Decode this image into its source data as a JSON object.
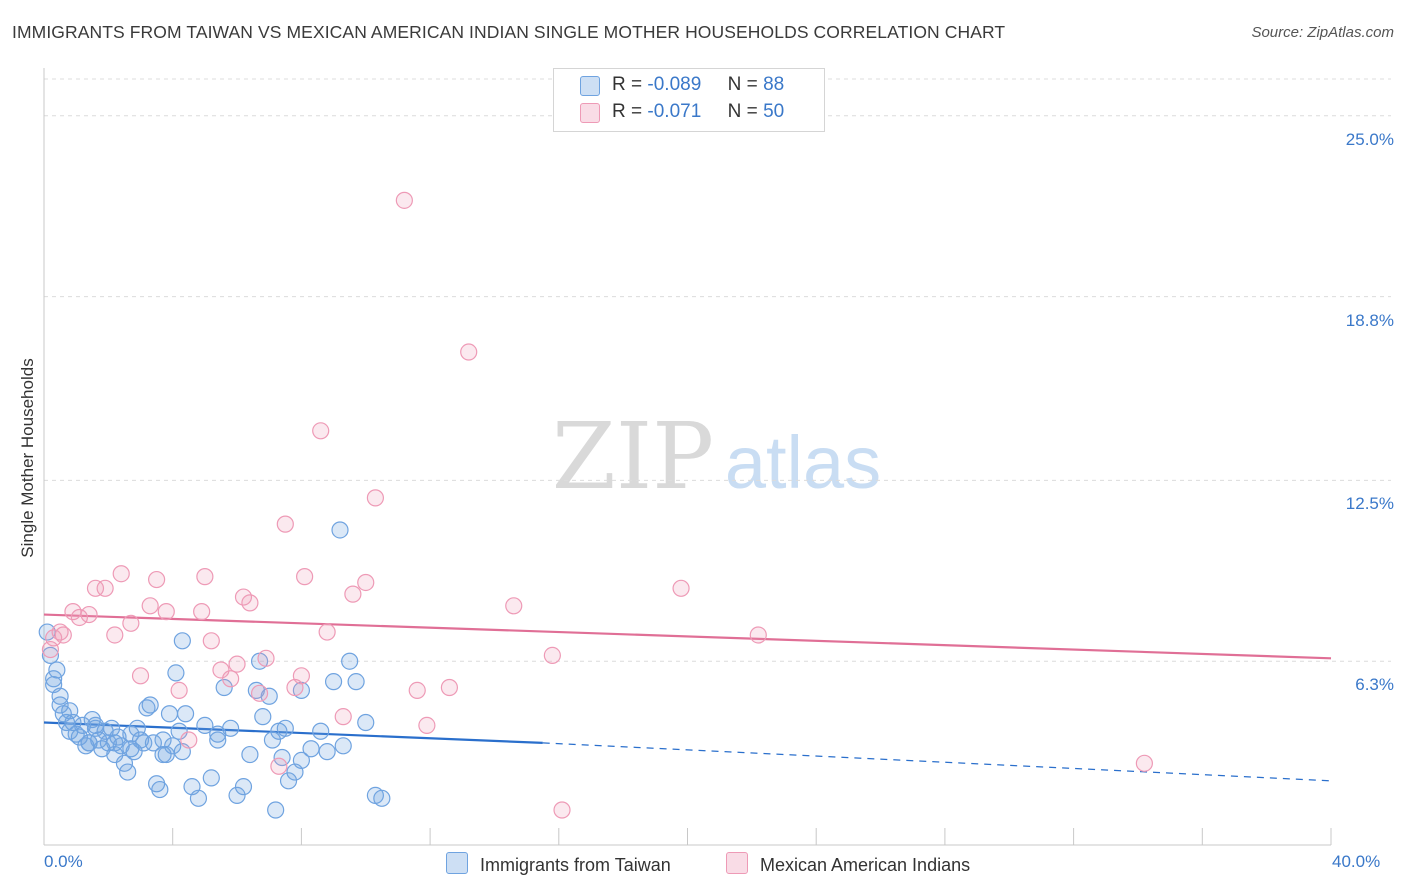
{
  "chart_data": {
    "type": "scatter",
    "title": "IMMIGRANTS FROM TAIWAN VS MEXICAN AMERICAN INDIAN SINGLE MOTHER HOUSEHOLDS CORRELATION CHART",
    "source": "Source: ZipAtlas.com",
    "ylabel": "Single Mother Households",
    "xlim": [
      0,
      40
    ],
    "ylim": [
      0,
      26.5
    ],
    "x_tick_labels": [
      "0.0%",
      "40.0%"
    ],
    "y_ticks": [
      {
        "value": 25.0,
        "label": "25.0%"
      },
      {
        "value": 18.8,
        "label": "18.8%"
      },
      {
        "value": 12.5,
        "label": "12.5%"
      },
      {
        "value": 6.3,
        "label": "6.3%"
      }
    ],
    "watermark": {
      "part1": "ZIP",
      "part2": "atlas"
    },
    "legend": {
      "rows": [
        {
          "r_label": "R =",
          "r_value": "-0.089",
          "n_label": "N =",
          "n_value": "88"
        },
        {
          "r_label": "R =",
          "r_value": "-0.071",
          "n_label": "N =",
          "n_value": "50"
        }
      ]
    },
    "series": [
      {
        "name": "Immigrants from Taiwan",
        "color": "#6fa3e0",
        "fill": "rgba(111,163,224,0.25)",
        "trend_color": "#2a6fcc",
        "trend": {
          "x0": 0,
          "y0": 4.2,
          "x1": 15.5,
          "y1": 3.5,
          "dash_to_x": 40,
          "dash_to_y": 2.2
        },
        "points": [
          [
            0.1,
            7.3
          ],
          [
            0.2,
            6.5
          ],
          [
            0.3,
            5.7
          ],
          [
            0.4,
            6.0
          ],
          [
            0.5,
            4.8
          ],
          [
            0.5,
            5.1
          ],
          [
            0.6,
            4.5
          ],
          [
            0.7,
            4.2
          ],
          [
            0.8,
            4.6
          ],
          [
            0.8,
            3.9
          ],
          [
            0.9,
            4.2
          ],
          [
            1.0,
            3.8
          ],
          [
            1.1,
            3.7
          ],
          [
            1.2,
            4.1
          ],
          [
            1.3,
            3.4
          ],
          [
            1.4,
            3.5
          ],
          [
            1.5,
            4.3
          ],
          [
            1.6,
            4.0
          ],
          [
            1.7,
            3.6
          ],
          [
            1.8,
            3.3
          ],
          [
            1.9,
            3.9
          ],
          [
            2.0,
            3.5
          ],
          [
            2.1,
            4.0
          ],
          [
            2.2,
            3.1
          ],
          [
            2.3,
            3.7
          ],
          [
            2.4,
            3.4
          ],
          [
            2.5,
            2.8
          ],
          [
            2.6,
            2.5
          ],
          [
            2.7,
            3.8
          ],
          [
            2.8,
            3.2
          ],
          [
            2.9,
            4.0
          ],
          [
            3.0,
            3.6
          ],
          [
            3.1,
            3.5
          ],
          [
            3.2,
            4.7
          ],
          [
            3.3,
            4.8
          ],
          [
            3.4,
            3.5
          ],
          [
            3.5,
            2.1
          ],
          [
            3.6,
            1.9
          ],
          [
            3.7,
            3.6
          ],
          [
            3.8,
            3.1
          ],
          [
            3.9,
            4.5
          ],
          [
            4.0,
            3.4
          ],
          [
            4.1,
            5.9
          ],
          [
            4.2,
            3.9
          ],
          [
            4.3,
            7.0
          ],
          [
            4.4,
            4.5
          ],
          [
            4.6,
            2.0
          ],
          [
            4.8,
            1.6
          ],
          [
            5.0,
            4.1
          ],
          [
            5.2,
            2.3
          ],
          [
            5.4,
            3.8
          ],
          [
            5.6,
            5.4
          ],
          [
            5.8,
            4.0
          ],
          [
            6.0,
            1.7
          ],
          [
            6.2,
            2.0
          ],
          [
            6.4,
            3.1
          ],
          [
            6.6,
            5.3
          ],
          [
            6.8,
            4.4
          ],
          [
            7.0,
            5.1
          ],
          [
            7.2,
            1.2
          ],
          [
            7.3,
            3.9
          ],
          [
            7.4,
            3.0
          ],
          [
            7.5,
            4.0
          ],
          [
            7.6,
            2.2
          ],
          [
            7.8,
            2.5
          ],
          [
            8.0,
            2.9
          ],
          [
            8.3,
            3.3
          ],
          [
            8.6,
            3.9
          ],
          [
            8.8,
            3.2
          ],
          [
            9.0,
            5.6
          ],
          [
            9.3,
            3.4
          ],
          [
            9.5,
            6.3
          ],
          [
            9.7,
            5.6
          ],
          [
            10.0,
            4.2
          ],
          [
            10.3,
            1.7
          ],
          [
            10.5,
            1.6
          ],
          [
            6.7,
            6.3
          ],
          [
            7.1,
            3.6
          ],
          [
            9.2,
            10.8
          ],
          [
            0.3,
            5.5
          ],
          [
            1.6,
            4.1
          ],
          [
            2.2,
            3.5
          ],
          [
            3.7,
            3.1
          ],
          [
            2.7,
            3.3
          ],
          [
            5.4,
            3.6
          ],
          [
            4.3,
            3.2
          ],
          [
            8.0,
            5.3
          ],
          [
            1.4,
            3.5
          ]
        ]
      },
      {
        "name": "Mexican American Indians",
        "color": "#ee9ab6",
        "fill": "rgba(238,154,182,0.22)",
        "trend_color": "#e06f96",
        "trend": {
          "x0": 0,
          "y0": 7.9,
          "x1": 40,
          "y1": 6.4
        },
        "points": [
          [
            0.2,
            6.7
          ],
          [
            0.3,
            7.1
          ],
          [
            0.5,
            7.3
          ],
          [
            0.6,
            7.2
          ],
          [
            0.9,
            8.0
          ],
          [
            1.1,
            7.8
          ],
          [
            1.4,
            7.9
          ],
          [
            1.6,
            8.8
          ],
          [
            1.9,
            8.8
          ],
          [
            2.2,
            7.2
          ],
          [
            2.4,
            9.3
          ],
          [
            2.7,
            7.6
          ],
          [
            3.0,
            5.8
          ],
          [
            3.3,
            8.2
          ],
          [
            3.5,
            9.1
          ],
          [
            3.8,
            8.0
          ],
          [
            4.2,
            5.3
          ],
          [
            4.5,
            3.6
          ],
          [
            4.9,
            8.0
          ],
          [
            5.0,
            9.2
          ],
          [
            5.2,
            7.0
          ],
          [
            5.5,
            6.0
          ],
          [
            5.8,
            5.7
          ],
          [
            6.0,
            6.2
          ],
          [
            6.2,
            8.5
          ],
          [
            6.4,
            8.3
          ],
          [
            6.7,
            5.2
          ],
          [
            6.9,
            6.4
          ],
          [
            7.3,
            2.7
          ],
          [
            7.5,
            11.0
          ],
          [
            7.8,
            5.4
          ],
          [
            8.0,
            5.8
          ],
          [
            8.1,
            9.2
          ],
          [
            8.6,
            14.2
          ],
          [
            9.3,
            4.4
          ],
          [
            9.6,
            8.6
          ],
          [
            10.0,
            9.0
          ],
          [
            10.3,
            11.9
          ],
          [
            11.6,
            5.3
          ],
          [
            11.9,
            4.1
          ],
          [
            12.6,
            5.4
          ],
          [
            13.2,
            16.9
          ],
          [
            14.6,
            8.2
          ],
          [
            15.8,
            6.5
          ],
          [
            16.1,
            1.2
          ],
          [
            19.8,
            8.8
          ],
          [
            22.2,
            7.2
          ],
          [
            34.2,
            2.8
          ],
          [
            11.2,
            22.1
          ],
          [
            8.8,
            7.3
          ]
        ]
      }
    ]
  }
}
